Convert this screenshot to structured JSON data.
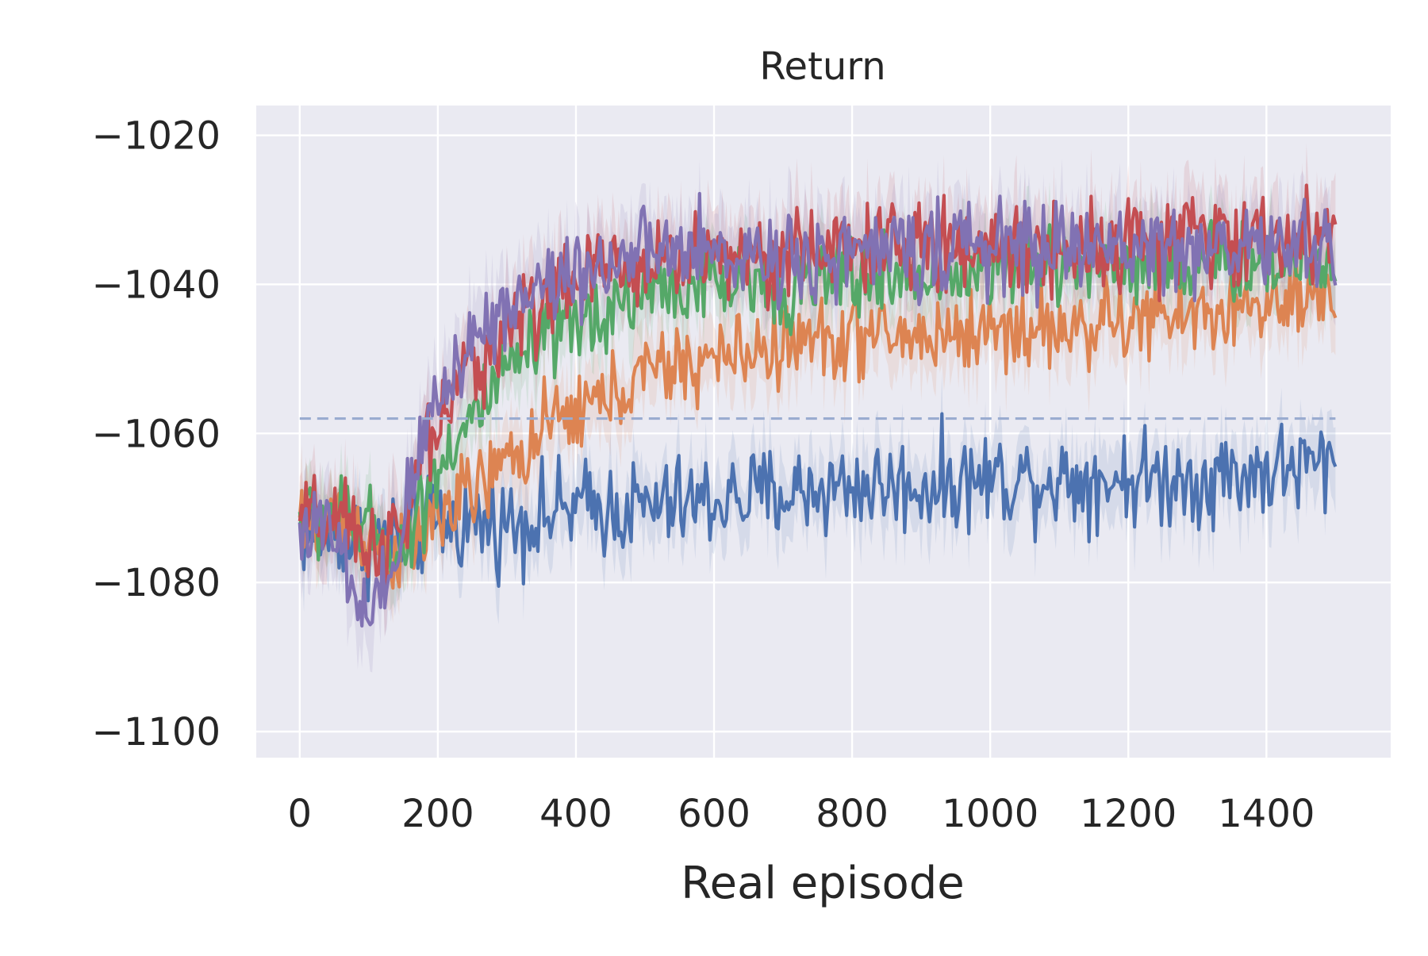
{
  "chart_data": {
    "type": "line",
    "title": "Return",
    "xlabel": "Real episode",
    "ylabel": "",
    "xlim": [
      -63,
      1580
    ],
    "ylim": [
      -1103.5,
      -1016
    ],
    "x_ticks": [
      0,
      200,
      400,
      600,
      800,
      1000,
      1200,
      1400
    ],
    "y_ticks": [
      -1020,
      -1040,
      -1060,
      -1080,
      -1100
    ],
    "x_tick_labels": [
      "0",
      "200",
      "400",
      "600",
      "800",
      "1000",
      "1200",
      "1400"
    ],
    "y_tick_labels": [
      "−1020",
      "−1040",
      "−1060",
      "−1080",
      "−1100"
    ],
    "grid": true,
    "legend": "none",
    "background": "#eaeaf2",
    "x_range": [
      0,
      1500
    ],
    "baseline": {
      "y": -1058,
      "style": "dashed",
      "color": "#9aacd0"
    },
    "series": [
      {
        "color": "#4c72b0",
        "noise": 3.2,
        "band": 4.5,
        "points": [
          [
            0,
            -1073
          ],
          [
            50,
            -1073
          ],
          [
            100,
            -1075
          ],
          [
            150,
            -1074
          ],
          [
            200,
            -1072
          ],
          [
            300,
            -1072
          ],
          [
            400,
            -1070
          ],
          [
            500,
            -1070
          ],
          [
            600,
            -1069
          ],
          [
            700,
            -1068
          ],
          [
            800,
            -1067
          ],
          [
            900,
            -1067
          ],
          [
            1000,
            -1066
          ],
          [
            1100,
            -1066
          ],
          [
            1200,
            -1066
          ],
          [
            1300,
            -1066
          ],
          [
            1400,
            -1065
          ],
          [
            1500,
            -1064
          ]
        ]
      },
      {
        "color": "#dd8452",
        "noise": 2.8,
        "band": 4.5,
        "points": [
          [
            0,
            -1072
          ],
          [
            50,
            -1071
          ],
          [
            100,
            -1074
          ],
          [
            150,
            -1077
          ],
          [
            200,
            -1071
          ],
          [
            250,
            -1068
          ],
          [
            300,
            -1064
          ],
          [
            350,
            -1060
          ],
          [
            400,
            -1057
          ],
          [
            450,
            -1055
          ],
          [
            500,
            -1052
          ],
          [
            550,
            -1051
          ],
          [
            600,
            -1050
          ],
          [
            700,
            -1048
          ],
          [
            800,
            -1047
          ],
          [
            900,
            -1047
          ],
          [
            1000,
            -1046
          ],
          [
            1100,
            -1046
          ],
          [
            1200,
            -1045
          ],
          [
            1300,
            -1044
          ],
          [
            1400,
            -1043
          ],
          [
            1500,
            -1043
          ]
        ]
      },
      {
        "color": "#55a868",
        "noise": 2.8,
        "band": 4.5,
        "points": [
          [
            0,
            -1071
          ],
          [
            50,
            -1071
          ],
          [
            100,
            -1073
          ],
          [
            150,
            -1076
          ],
          [
            200,
            -1064
          ],
          [
            250,
            -1058
          ],
          [
            300,
            -1052
          ],
          [
            350,
            -1048
          ],
          [
            400,
            -1046
          ],
          [
            450,
            -1043
          ],
          [
            500,
            -1041
          ],
          [
            600,
            -1040
          ],
          [
            700,
            -1040
          ],
          [
            800,
            -1039
          ],
          [
            900,
            -1039
          ],
          [
            1000,
            -1038
          ],
          [
            1100,
            -1037
          ],
          [
            1200,
            -1037
          ],
          [
            1300,
            -1037
          ],
          [
            1400,
            -1037
          ],
          [
            1500,
            -1037
          ]
        ]
      },
      {
        "color": "#c44e52",
        "noise": 3.0,
        "band": 5,
        "points": [
          [
            0,
            -1072
          ],
          [
            50,
            -1072
          ],
          [
            100,
            -1075
          ],
          [
            150,
            -1074
          ],
          [
            180,
            -1062
          ],
          [
            220,
            -1056
          ],
          [
            250,
            -1051
          ],
          [
            300,
            -1046
          ],
          [
            350,
            -1042
          ],
          [
            400,
            -1040
          ],
          [
            450,
            -1038
          ],
          [
            500,
            -1037
          ],
          [
            600,
            -1036
          ],
          [
            700,
            -1036
          ],
          [
            800,
            -1035
          ],
          [
            900,
            -1035
          ],
          [
            1000,
            -1035
          ],
          [
            1100,
            -1035
          ],
          [
            1200,
            -1034
          ],
          [
            1300,
            -1034
          ],
          [
            1400,
            -1034
          ],
          [
            1500,
            -1034
          ]
        ]
      },
      {
        "color": "#8172b3",
        "noise": 3.0,
        "band": 5,
        "points": [
          [
            0,
            -1072
          ],
          [
            50,
            -1074
          ],
          [
            80,
            -1082
          ],
          [
            100,
            -1086
          ],
          [
            125,
            -1082
          ],
          [
            150,
            -1072
          ],
          [
            175,
            -1062
          ],
          [
            200,
            -1055
          ],
          [
            250,
            -1047
          ],
          [
            300,
            -1043
          ],
          [
            350,
            -1040
          ],
          [
            400,
            -1038
          ],
          [
            450,
            -1037
          ],
          [
            500,
            -1036
          ],
          [
            600,
            -1036
          ],
          [
            700,
            -1036
          ],
          [
            800,
            -1036
          ],
          [
            900,
            -1035
          ],
          [
            1000,
            -1035
          ],
          [
            1100,
            -1035
          ],
          [
            1200,
            -1035
          ],
          [
            1300,
            -1035
          ],
          [
            1400,
            -1035
          ],
          [
            1500,
            -1035
          ]
        ]
      }
    ]
  }
}
